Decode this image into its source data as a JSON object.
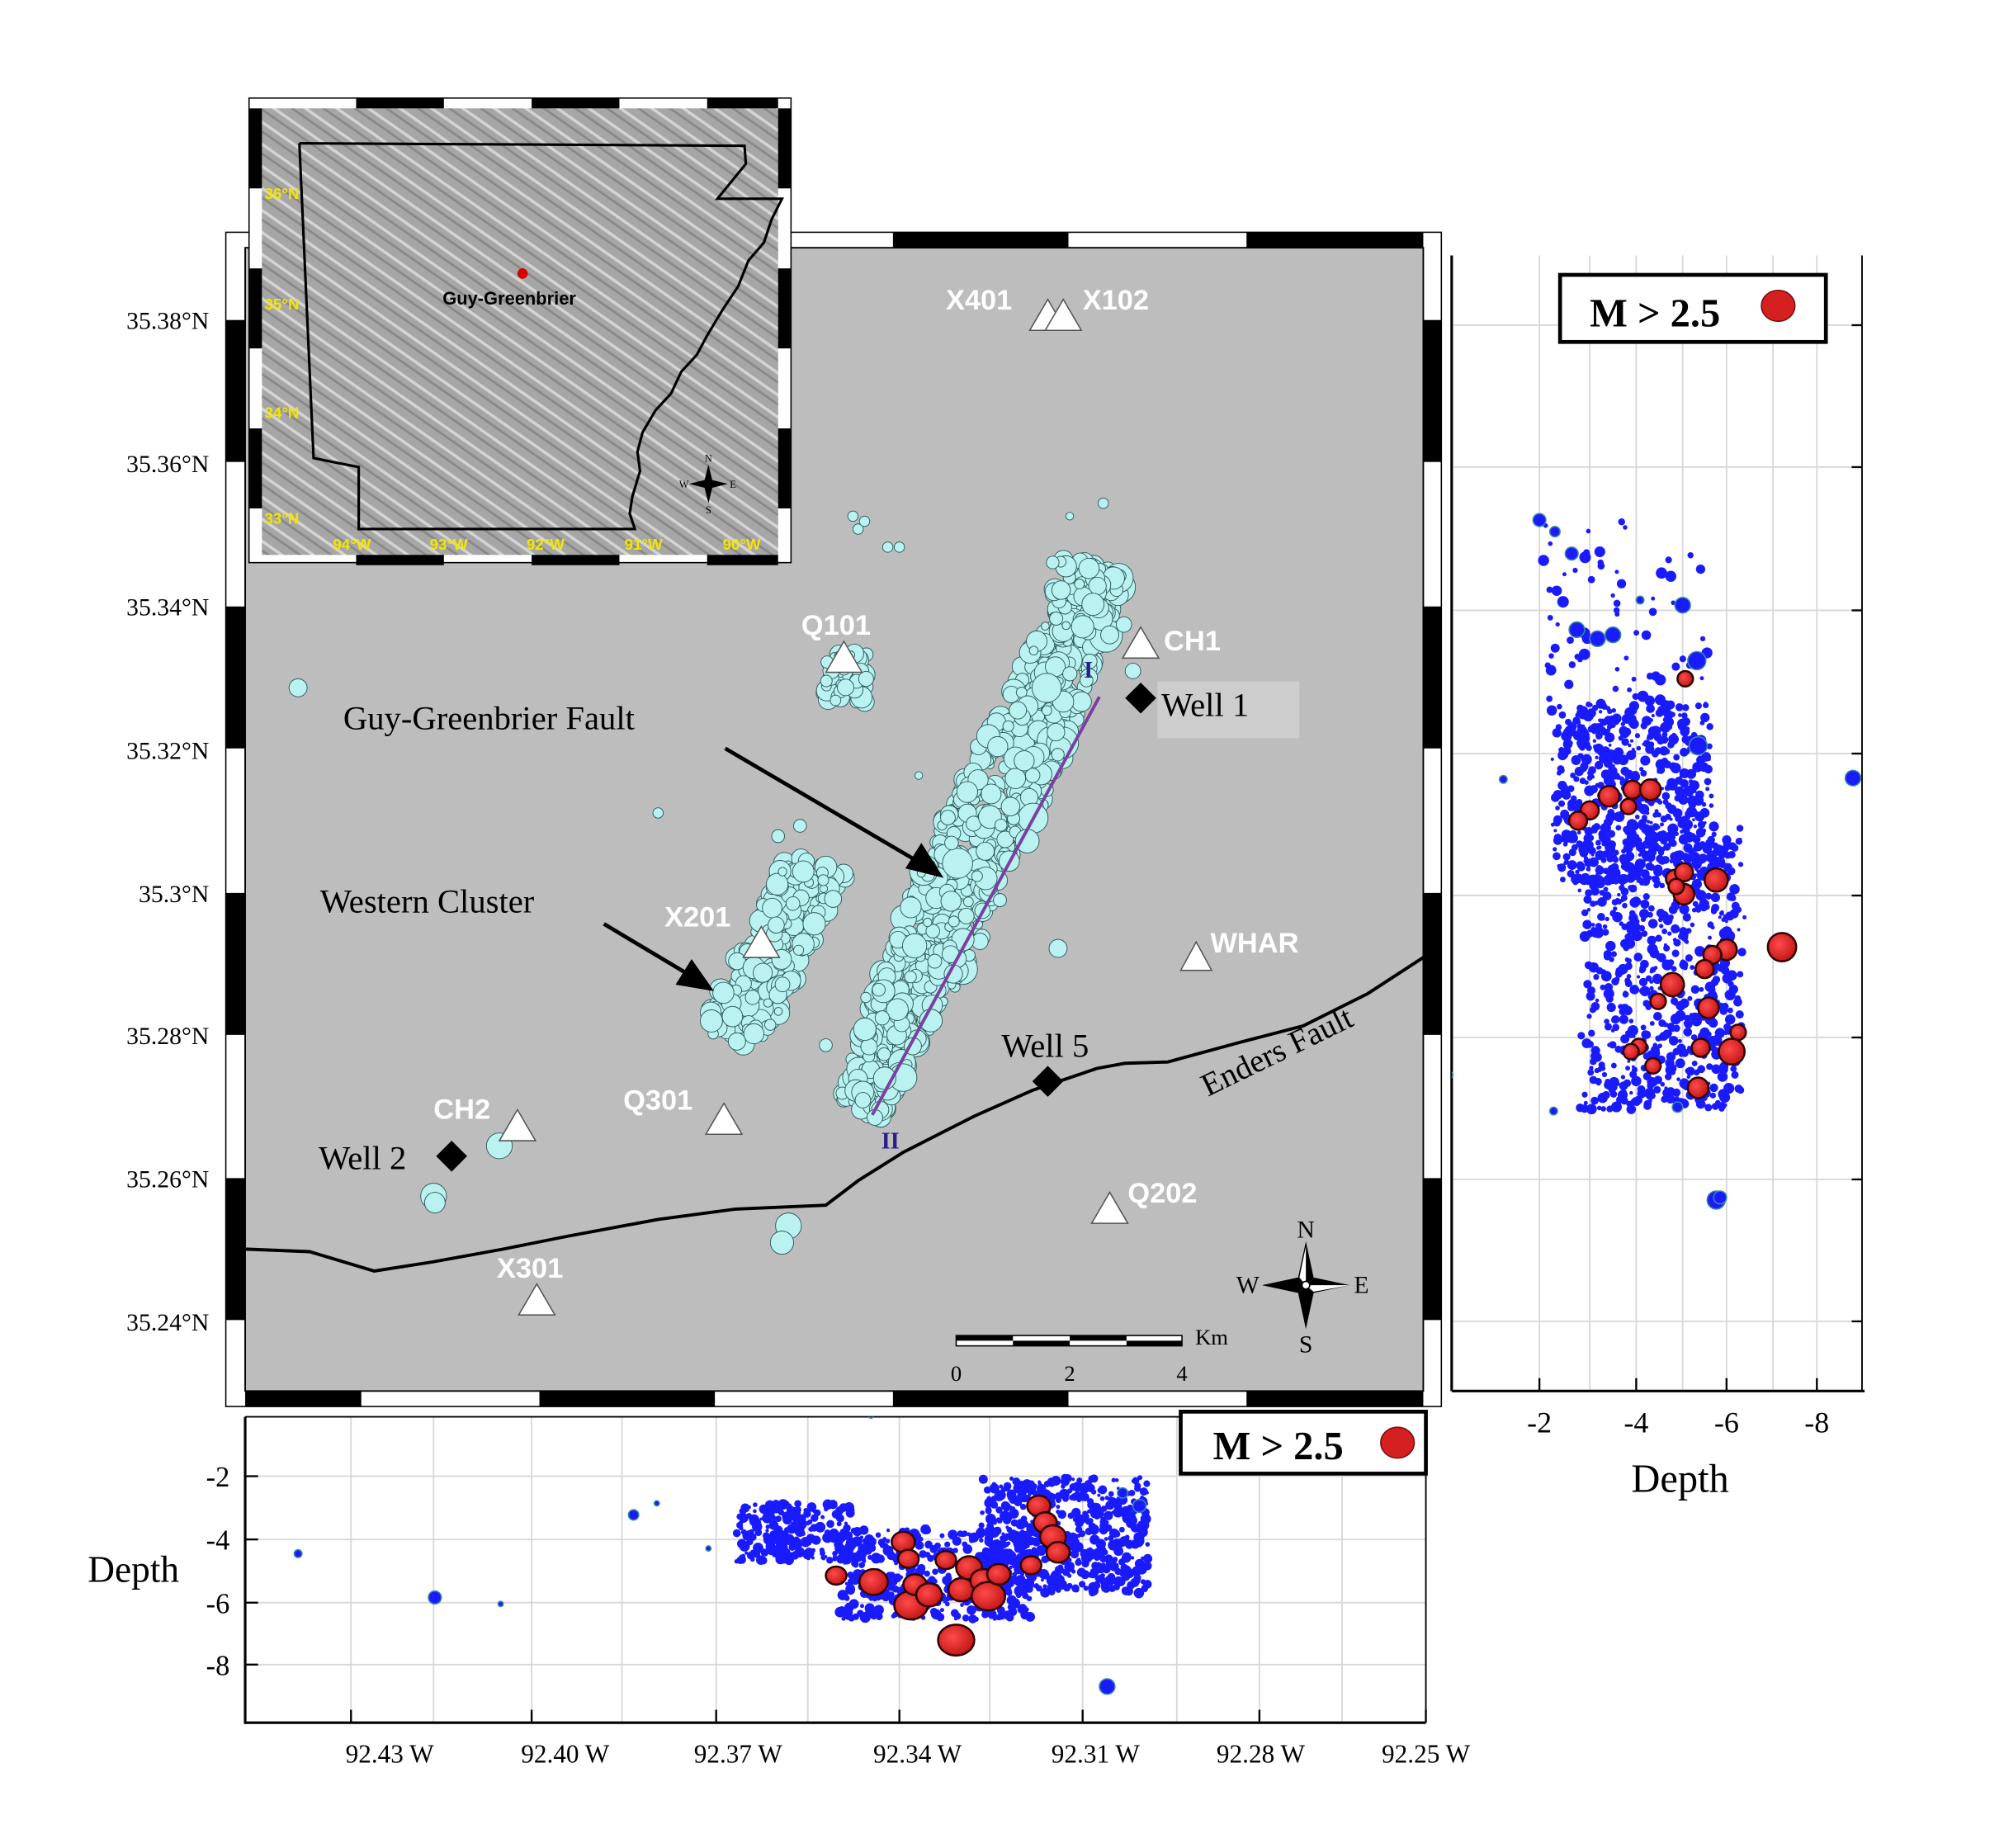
{
  "map": {
    "lat_ticks": [
      "35.38°N",
      "35.36°N",
      "35.34°N",
      "35.32°N",
      "35.3°N",
      "35.28°N",
      "35.26°N",
      "35.24°N"
    ],
    "lon_ticks": [
      "92.43 W",
      "92.40 W",
      "92.37 W",
      "92.34 W",
      "92.31 W",
      "92.28 W",
      "92.25 W"
    ],
    "stations": [
      "X401",
      "X102",
      "Q101",
      "CH1",
      "X201",
      "WHAR",
      "Q301",
      "CH2",
      "X301",
      "Q202"
    ],
    "wells": [
      "Well 1",
      "Well 5",
      "Well 2"
    ],
    "labels": {
      "fault": "Guy-Greenbrier Fault",
      "cluster": "Western Cluster",
      "enders": "Enders Fault",
      "profile_start": "I",
      "profile_end": "II"
    },
    "scale_bar": {
      "unit": "Km",
      "ticks": [
        "0",
        "2",
        "4"
      ]
    },
    "compass": {
      "n": "N",
      "s": "S",
      "e": "E",
      "w": "W"
    },
    "colors": {
      "event": "#b9f2f0",
      "map_bg": "#bdbdbd",
      "profile": "#7a3fa0",
      "frame": "#000000"
    }
  },
  "inset": {
    "place": "Guy-Greenbrier",
    "lat_labels": [
      "36°N",
      "35°N",
      "34°N",
      "33°N"
    ],
    "lon_labels": [
      "94°W",
      "93°W",
      "92°W",
      "91°W",
      "90°W"
    ],
    "label_color": "#f2e600",
    "marker_color": "#d40000"
  },
  "depth_right": {
    "legend": "M > 2.5",
    "xticks": [
      "-2",
      "-4",
      "-6",
      "-8"
    ],
    "xlabel": "Depth"
  },
  "depth_bottom": {
    "legend": "M > 2.5",
    "yticks": [
      "-2",
      "-4",
      "-6",
      "-8"
    ],
    "ylabel": "Depth"
  },
  "legend_colors": {
    "large_event": "#d42020",
    "small_event": "#1a1aff"
  }
}
